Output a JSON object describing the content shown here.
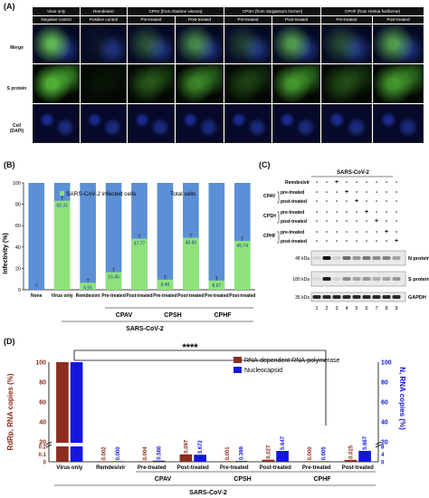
{
  "panelA": {
    "label": "(A)",
    "groups": [
      "Virus only",
      "Remdesivir",
      "CPAV (from Abalone viscera)",
      "CPSH (from Sargassum horneri)",
      "CPHF (from Hizikia fusiforme)"
    ],
    "subs": [
      "Negative control",
      "Positive control",
      "Pre-treated",
      "Post-treated",
      "Pre-treated",
      "Post-treated",
      "Pre-treated",
      "Post-treated"
    ],
    "rows": [
      {
        "line1": "Merge",
        "line2": ""
      },
      {
        "line1": "S protein",
        "line2": ""
      },
      {
        "line1": "Cell",
        "line2": "(DAPI)"
      }
    ]
  },
  "panelB": {
    "label": "(B)",
    "chart_data": {
      "type": "bar",
      "categories": [
        "None",
        "Virus only",
        "Remdesivir",
        "Pre-treated",
        "Post-treated",
        "Pre-treated",
        "Post-treated",
        "Pre-treated",
        "Post-treated"
      ],
      "series": [
        {
          "name": "SARS-CoV-2 infected cells",
          "values": [
            0,
            83.33,
            6.55,
            16.45,
            47.77,
            9.46,
            48.65,
            8.67,
            45.74
          ],
          "color": "#8fe37a"
        },
        {
          "name": "Total cells",
          "values": [
            100,
            100,
            100,
            100,
            100,
            100,
            100,
            100,
            100
          ],
          "color": "#5b8fd6"
        }
      ],
      "value_labels": [
        "0",
        "83.33",
        "6.55",
        "16.45",
        "47.77",
        "9.46",
        "48.65",
        "8.67",
        "45.74"
      ],
      "ylabel": "Infectivity (%)",
      "ylim": [
        0,
        100
      ],
      "yticks": [
        "0",
        "20",
        "40",
        "60",
        "80",
        "100"
      ],
      "group_labels": [
        "CPAV",
        "CPSH",
        "CPHF"
      ],
      "xlabel": "SARS-CoV-2"
    }
  },
  "panelC": {
    "label": "(C)",
    "header": "SARS-CoV-2",
    "remdesivir": "Remdesivir",
    "treatments": [
      {
        "name": "CPAV",
        "pre": "pre-treated",
        "post": "post-treated"
      },
      {
        "name": "CPSH",
        "pre": "pre-treated",
        "post": "post-treated"
      },
      {
        "name": "CPHF",
        "pre": "pre-treated",
        "post": "post-treated"
      }
    ],
    "marks": [
      [
        "-",
        "-",
        "+",
        "-",
        "-",
        "-",
        "-",
        "-",
        "-"
      ],
      [
        "-",
        "-",
        "-",
        "+",
        "-",
        "-",
        "-",
        "-",
        "-"
      ],
      [
        "-",
        "-",
        "-",
        "-",
        "+",
        "-",
        "-",
        "-",
        "-"
      ],
      [
        "-",
        "-",
        "-",
        "-",
        "-",
        "+",
        "-",
        "-",
        "-"
      ],
      [
        "-",
        "-",
        "-",
        "-",
        "-",
        "-",
        "+",
        "-",
        "-"
      ],
      [
        "-",
        "-",
        "-",
        "-",
        "-",
        "-",
        "-",
        "+",
        "-"
      ],
      [
        "-",
        "-",
        "-",
        "-",
        "-",
        "-",
        "-",
        "-",
        "+"
      ]
    ],
    "blots": [
      {
        "kda": "48 kDa",
        "name": "N protein"
      },
      {
        "kda": "180 kDa",
        "name": "S protein"
      },
      {
        "kda": "35 kDa",
        "name": "GAPDH"
      }
    ],
    "lanes": [
      "1",
      "2",
      "3",
      "4",
      "5",
      "6",
      "7",
      "8",
      "9"
    ]
  },
  "panelD": {
    "label": "(D)",
    "chart_data": {
      "type": "bar",
      "categories": [
        "Virus only",
        "Remdesivir",
        "Pre-treated",
        "Post-treated",
        "Pre-treated",
        "Post-treated",
        "Pre-treated",
        "Post-treated"
      ],
      "series": [
        {
          "name": "RNA-dependent RNA-polymerase",
          "values": [
            100,
            0.002,
            0.004,
            0.097,
            0.001,
            0.027,
            0.0,
            0.025
          ],
          "color": "#8b2e1e"
        },
        {
          "name": "Nucleocapsid",
          "values": [
            100,
            0.0,
            0.586,
            3.672,
            0.399,
            5.647,
            0.005,
            5.687
          ],
          "color": "#1515e0"
        }
      ],
      "rdrp_labels": [
        "0.002",
        "0.004",
        "0.097",
        "0.001",
        "0.027",
        "0.000",
        "0.025"
      ],
      "nc_labels": [
        "0.000",
        "0.586",
        "3.672",
        "0.399",
        "5.647",
        "0.005",
        "5.687"
      ],
      "ylabel_left": "RdRp, RNA copies (%)",
      "ylabel_right": "N, RNA copies (%)",
      "yticks_top": [
        "20",
        "40",
        "60",
        "80",
        "100"
      ],
      "yticks_bottom_left": [
        "0",
        "0.1",
        "0.2"
      ],
      "yticks_bottom_right": [
        "0",
        "4",
        "8"
      ],
      "significance": "****",
      "group_labels": [
        "CPAV",
        "CPSH",
        "CPHF"
      ],
      "xlabel": "SARS-CoV-2"
    }
  }
}
